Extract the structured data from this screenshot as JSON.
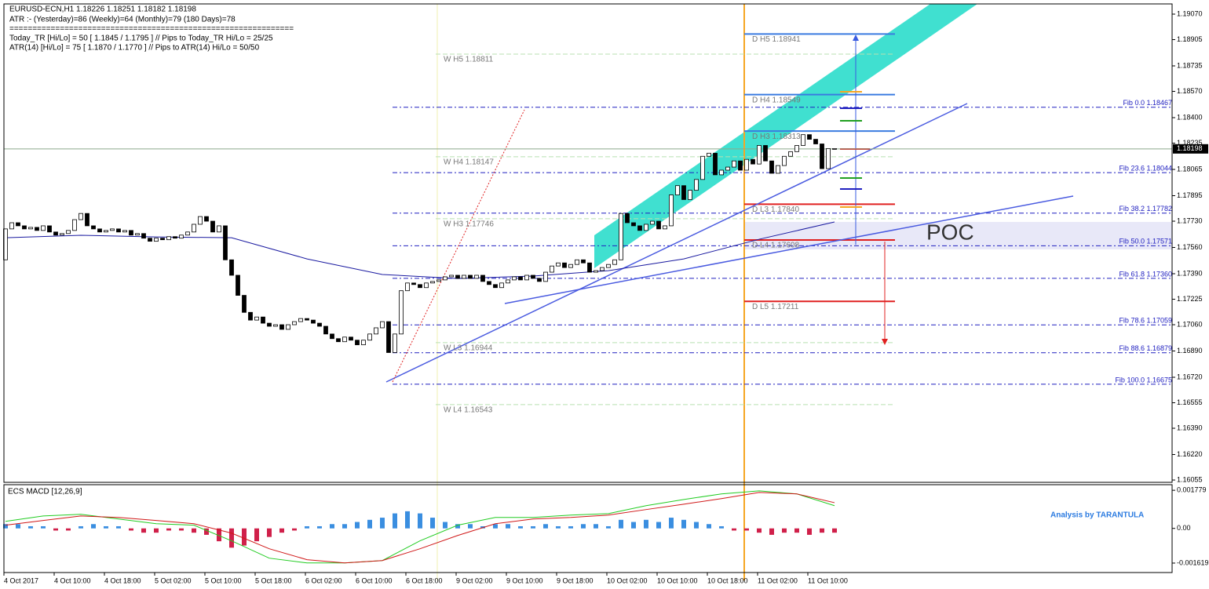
{
  "chart_data": [
    {
      "type": "candlestick",
      "title": "EURUSD-ECN,H1  1.18226 1.18251 1.18182 1.18198",
      "info_lines": [
        "ATR :- (Yesterday)=86      (Weekly)=64      (Monthly)=79      (180 Days)=78",
        "==============================================================",
        "Today_TR [Hi/Lo] = 50 [ 1.1845 / 1.1795 ]   // Pips to Today_TR Hi/Lo  = 25/25",
        "ATR(14)      [Hi/Lo] = 75 [ 1.1870 / 1.1770 ]  //  Pips to ATR(14) Hi/Lo      = 50/50"
      ],
      "open": [
        1.1748,
        1.1768,
        1.1772,
        1.177,
        1.1768,
        1.1769,
        1.1767,
        1.177,
        1.1766,
        1.1764,
        1.1765,
        1.1767,
        1.1774,
        1.1778,
        1.177,
        1.1768,
        1.1766,
        1.1767,
        1.1768,
        1.1766,
        1.1767,
        1.1764,
        1.1765,
        1.1762,
        1.176,
        1.1762,
        1.1761,
        1.1763,
        1.1762,
        1.1764,
        1.1766,
        1.1771,
        1.1776,
        1.1773,
        1.1766,
        1.177,
        1.1748,
        1.1738,
        1.1725,
        1.1714,
        1.1709,
        1.1711,
        1.1707,
        1.1705,
        1.1706,
        1.1703,
        1.1706,
        1.1708,
        1.171,
        1.1709,
        1.1707,
        1.1705,
        1.17,
        1.1697,
        1.1695,
        1.1698,
        1.1696,
        1.1693,
        1.1696,
        1.17,
        1.1704,
        1.1708,
        1.1688,
        1.17,
        1.1728,
        1.1733,
        1.1732,
        1.173,
        1.1733,
        1.1734,
        1.1735,
        1.1737,
        1.1738,
        1.1736,
        1.1738,
        1.1736,
        1.1738,
        1.1734,
        1.1732,
        1.173,
        1.1733,
        1.1735,
        1.1737,
        1.1735,
        1.1738,
        1.1736,
        1.1734,
        1.174,
        1.1744,
        1.1746,
        1.1743,
        1.1745,
        1.1748,
        1.1746,
        1.174,
        1.1741,
        1.1743,
        1.1745,
        1.1748,
        1.1778,
        1.1772,
        1.177,
        1.1767,
        1.1771,
        1.1773,
        1.1768,
        1.177,
        1.179,
        1.1796,
        1.1787,
        1.1793,
        1.18,
        1.1815,
        1.1817,
        1.1803,
        1.1806,
        1.1808,
        1.1812,
        1.1806,
        1.1813,
        1.181,
        1.1822,
        1.1812,
        1.1804,
        1.1809,
        1.1815,
        1.1818,
        1.1822,
        1.1829,
        1.1826,
        1.1823,
        1.1807,
        1.182
      ],
      "close": [
        1.1768,
        1.1772,
        1.177,
        1.1768,
        1.1769,
        1.1767,
        1.177,
        1.1766,
        1.1764,
        1.1765,
        1.1767,
        1.1774,
        1.1778,
        1.177,
        1.1768,
        1.1766,
        1.1767,
        1.1768,
        1.1766,
        1.1767,
        1.1764,
        1.1765,
        1.1762,
        1.176,
        1.1762,
        1.1761,
        1.1763,
        1.1762,
        1.1764,
        1.1766,
        1.1771,
        1.1776,
        1.1773,
        1.1766,
        1.177,
        1.1748,
        1.1738,
        1.1725,
        1.1714,
        1.1709,
        1.1711,
        1.1707,
        1.1705,
        1.1706,
        1.1703,
        1.1706,
        1.1708,
        1.171,
        1.1709,
        1.1707,
        1.1705,
        1.17,
        1.1697,
        1.1695,
        1.1698,
        1.1696,
        1.1693,
        1.1696,
        1.17,
        1.1704,
        1.1708,
        1.1688,
        1.17,
        1.1728,
        1.1733,
        1.1732,
        1.173,
        1.1733,
        1.1734,
        1.1735,
        1.1737,
        1.1738,
        1.1736,
        1.1738,
        1.1736,
        1.1738,
        1.1734,
        1.1732,
        1.173,
        1.1733,
        1.1735,
        1.1737,
        1.1735,
        1.1738,
        1.1736,
        1.1734,
        1.174,
        1.1744,
        1.1746,
        1.1743,
        1.1745,
        1.1748,
        1.1746,
        1.174,
        1.1741,
        1.1743,
        1.1745,
        1.1748,
        1.1778,
        1.1772,
        1.177,
        1.1767,
        1.1771,
        1.1773,
        1.1768,
        1.177,
        1.179,
        1.1796,
        1.1787,
        1.1793,
        1.18,
        1.1815,
        1.1817,
        1.1803,
        1.1806,
        1.1808,
        1.1812,
        1.1806,
        1.1813,
        1.181,
        1.1822,
        1.1812,
        1.1804,
        1.1809,
        1.1815,
        1.1818,
        1.1822,
        1.1829,
        1.1826,
        1.1823,
        1.1807,
        1.182,
        1.182
      ],
      "ma": {
        "color": "#1a1aa0",
        "x": [
          0,
          12,
          24,
          36,
          48,
          60,
          72,
          84,
          96,
          108,
          120,
          132
        ],
        "values": [
          1.17623,
          1.17639,
          1.17628,
          1.17623,
          1.17486,
          1.17385,
          1.17359,
          1.17375,
          1.1741,
          1.17486,
          1.17613,
          1.17725
        ]
      },
      "last_price": 1.18198,
      "ylim": [
        1.19136,
        1.1604
      ],
      "yticks": [
        {
          "value": 1.1907,
          "label": "1.19070"
        },
        {
          "value": 1.18905,
          "label": "1.18905"
        },
        {
          "value": 1.18735,
          "label": "1.18735"
        },
        {
          "value": 1.1857,
          "label": "1.18570"
        },
        {
          "value": 1.184,
          "label": "1.18400"
        },
        {
          "value": 1.18235,
          "label": "1.18235"
        },
        {
          "value": 1.18065,
          "label": "1.18065"
        },
        {
          "value": 1.17895,
          "label": "1.17895"
        },
        {
          "value": 1.1773,
          "label": "1.17730"
        },
        {
          "value": 1.1756,
          "label": "1.17560"
        },
        {
          "value": 1.1739,
          "label": "1.17390"
        },
        {
          "value": 1.17225,
          "label": "1.17225"
        },
        {
          "value": 1.1706,
          "label": "1.17060"
        },
        {
          "value": 1.1689,
          "label": "1.16890"
        },
        {
          "value": 1.1672,
          "label": "1.16720"
        },
        {
          "value": 1.16555,
          "label": "1.16555"
        },
        {
          "value": 1.1639,
          "label": "1.16390"
        },
        {
          "value": 1.1622,
          "label": "1.16220"
        },
        {
          "value": 1.16055,
          "label": "1.16055"
        }
      ],
      "xticks": [
        {
          "value": 0,
          "label": "4 Oct 2017"
        },
        {
          "value": 8,
          "label": "4 Oct 10:00"
        },
        {
          "value": 16,
          "label": "4 Oct 18:00"
        },
        {
          "value": 24,
          "label": "5 Oct 02:00"
        },
        {
          "value": 32,
          "label": "5 Oct 10:00"
        },
        {
          "value": 40,
          "label": "5 Oct 18:00"
        },
        {
          "value": 48,
          "label": "6 Oct 02:00"
        },
        {
          "value": 56,
          "label": "6 Oct 10:00"
        },
        {
          "value": 64,
          "label": "6 Oct 18:00"
        },
        {
          "value": 72,
          "label": "9 Oct 02:00"
        },
        {
          "value": 80,
          "label": "9 Oct 10:00"
        },
        {
          "value": 88,
          "label": "9 Oct 18:00"
        },
        {
          "value": 96,
          "label": "10 Oct 02:00"
        },
        {
          "value": 104,
          "label": "10 Oct 10:00"
        },
        {
          "value": 112,
          "label": "10 Oct 18:00"
        },
        {
          "value": 120,
          "label": "11 Oct 02:00"
        },
        {
          "value": 128,
          "label": "11 Oct 10:00"
        }
      ],
      "fib_levels": [
        {
          "value": 1.18467,
          "label": "Fib 0.0  1.18467"
        },
        {
          "value": 1.18044,
          "label": "Fib 23.6  1.18044"
        },
        {
          "value": 1.17782,
          "label": "Fib 38.2  1.17782"
        },
        {
          "value": 1.17571,
          "label": "Fib 50.0  1.17571"
        },
        {
          "value": 1.1736,
          "label": "Fib 61.8  1.17360"
        },
        {
          "value": 1.17059,
          "label": "Fib 78.6  1.17059"
        },
        {
          "value": 1.16879,
          "label": "Fib 88.6  1.16879"
        },
        {
          "value": 1.16675,
          "label": "Fib 100.0  1.16675"
        }
      ],
      "daily_levels": [
        {
          "value": 1.18941,
          "label": "D  H5 1.18941",
          "color": "#3a7be0"
        },
        {
          "value": 1.18549,
          "label": "D  H4 1.18549",
          "color": "#3a7be0"
        },
        {
          "value": 1.18313,
          "label": "D  H3 1.18313",
          "color": "#3a7be0"
        },
        {
          "value": 1.1784,
          "label": "D  L3 1.17840",
          "color": "#e02020"
        },
        {
          "value": 1.17608,
          "label": "D  L4 1.17608",
          "color": "#e02020"
        },
        {
          "value": 1.17211,
          "label": "D  L5 1.17211",
          "color": "#e02020"
        }
      ],
      "weekly_levels": [
        {
          "value": 1.18811,
          "label": "W  H5 1.18811"
        },
        {
          "value": 1.18147,
          "label": "W  H4 1.18147"
        },
        {
          "value": 1.17746,
          "label": "W  H3 1.17746"
        },
        {
          "value": 1.16944,
          "label": "W  L3 1.16944"
        },
        {
          "value": 1.16543,
          "label": "W  L4 1.16543"
        }
      ],
      "annotation": "POC"
    },
    {
      "type": "macd",
      "title": "ECS MACD [12,26,9]",
      "annotation": "Analysis by TARANTULA",
      "ylim": [
        0.00204,
        -0.00206
      ],
      "yticks": [
        0.001779,
        {
          "value": 0,
          "label": "0.00"
        },
        -0.001619
      ],
      "histogram": {
        "x": [
          0,
          2,
          4,
          6,
          8,
          10,
          12,
          14,
          16,
          18,
          20,
          22,
          24,
          26,
          28,
          30,
          32,
          34,
          36,
          38,
          40,
          42,
          44,
          46,
          48,
          50,
          52,
          54,
          56,
          58,
          60,
          62,
          64,
          66,
          68,
          70,
          72,
          74,
          76,
          78,
          80,
          82,
          84,
          86,
          88,
          90,
          92,
          94,
          96,
          98,
          100,
          102,
          104,
          106,
          108,
          110,
          112,
          114,
          116,
          118,
          120,
          122,
          124,
          126,
          128,
          130,
          132
        ],
        "values": [
          0.0002,
          0.0002,
          0.0001,
          0.0001,
          -0.0001,
          -0.0001,
          0.0001,
          0.0002,
          0.0001,
          0.0001,
          -0.0001,
          -0.0002,
          -0.0002,
          -0.0001,
          -0.0001,
          -0.0002,
          -0.0003,
          -0.0006,
          -0.0009,
          -0.0008,
          -0.0006,
          -0.0004,
          -0.0002,
          -0.0001,
          0.0001,
          0.0001,
          0.0002,
          0.0002,
          0.0003,
          0.0004,
          0.0005,
          0.0007,
          0.0008,
          0.0007,
          0.0005,
          0.0003,
          0.0002,
          0.0002,
          0.0001,
          0.0002,
          0.0002,
          0.0001,
          0.0001,
          0.0002,
          0.0001,
          0.0001,
          0.0002,
          0.0002,
          0.0001,
          0.0004,
          0.0003,
          0.0004,
          0.0003,
          0.0005,
          0.0004,
          0.0003,
          0.0002,
          0.0001,
          -0.0001,
          -0.0001,
          -0.0002,
          -0.0003,
          -0.0002,
          -0.0002,
          -0.0003,
          -0.0002,
          -0.0002
        ]
      },
      "series": [
        {
          "color": "#22cc22",
          "x": [
            0,
            6,
            12,
            18,
            24,
            30,
            36,
            42,
            48,
            54,
            60,
            66,
            72,
            78,
            84,
            90,
            96,
            102,
            108,
            114,
            120,
            126,
            132
          ],
          "values": [
            0.00033,
            0.00058,
            0.00066,
            0.00044,
            0.00022,
            0.00015,
            -0.00058,
            -0.00139,
            -0.00161,
            -0.00161,
            -0.0015,
            -0.00058,
            0.00015,
            0.00051,
            0.00051,
            0.00062,
            0.00069,
            0.00106,
            0.00135,
            0.00161,
            0.00175,
            0.00161,
            0.00106
          ]
        },
        {
          "color": "#d01818",
          "x": [
            0,
            6,
            12,
            18,
            24,
            30,
            36,
            42,
            48,
            54,
            60,
            66,
            72,
            78,
            84,
            90,
            96,
            102,
            108,
            114,
            120,
            126,
            132
          ],
          "values": [
            0.00015,
            0.00037,
            0.00058,
            0.00051,
            0.00037,
            0.00022,
            -0.00022,
            -0.00095,
            -0.00146,
            -0.00161,
            -0.0015,
            -0.00095,
            -0.00033,
            0.00022,
            0.00044,
            0.00051,
            0.00062,
            0.00088,
            0.00113,
            0.00139,
            0.00168,
            0.00161,
            0.0012
          ]
        }
      ]
    }
  ]
}
